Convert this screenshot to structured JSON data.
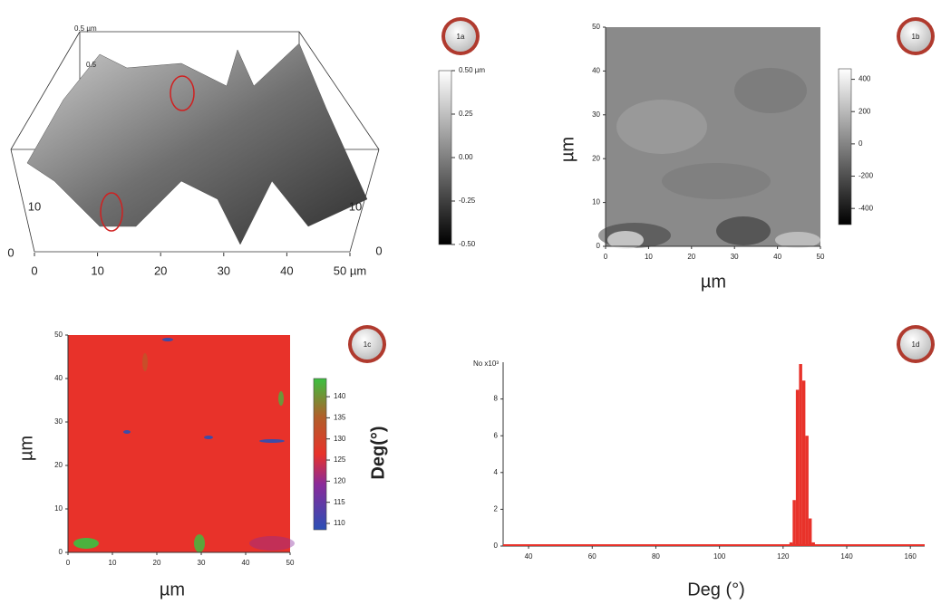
{
  "chart_data": [
    {
      "type": "surface",
      "label": "1a",
      "xlim": [
        0,
        50
      ],
      "xticks": [
        0,
        10,
        20,
        30,
        40,
        {
          "value": 50,
          "label": "50 µm"
        }
      ],
      "yticks": [
        0,
        10
      ],
      "y2ticks": [
        0,
        10
      ],
      "zticks": [
        {
          "value": 0.5,
          "label": "0.5 µm"
        },
        {
          "value": 0.5,
          "label": "0.5"
        }
      ],
      "clim": [
        -0.5,
        0.5
      ],
      "cticks": [
        {
          "value": 0.5,
          "label": "0.50 µm"
        },
        0.25,
        {
          "value": 0,
          "label": "0.00"
        },
        -0.25,
        {
          "value": -0.5,
          "label": "-0.50"
        }
      ]
    },
    {
      "type": "heatmap",
      "label": "1b",
      "xlabel": "µm",
      "ylabel": "µm",
      "color": "#8a8a8a",
      "xlim": [
        0,
        50
      ],
      "ylim": [
        0,
        50
      ],
      "xticks": [
        0,
        10,
        20,
        30,
        40,
        50
      ],
      "yticks": [
        0,
        10,
        20,
        30,
        40,
        50
      ],
      "clim": [
        -500,
        465
      ],
      "cticks": [
        400,
        200,
        0,
        -200,
        -400
      ]
    },
    {
      "type": "heatmap",
      "label": "1c",
      "xlabel": "µm",
      "ylabel": "µm",
      "clabel": "Deg(°)",
      "color": "#e8322a",
      "xlim": [
        0,
        50
      ],
      "ylim": [
        0,
        50
      ],
      "xticks": [
        0,
        10,
        20,
        30,
        40,
        50
      ],
      "yticks": [
        0,
        10,
        20,
        30,
        40,
        50
      ],
      "clim": [
        108.5,
        144.3
      ],
      "cticks": [
        140,
        135,
        130,
        125,
        120,
        115,
        110
      ]
    },
    {
      "type": "histogram",
      "label": "1d",
      "xlabel": "Deg (°)",
      "ylabel": "No x10³",
      "color": "#e8322a",
      "xlim": [
        32,
        164.5
      ],
      "ylim": [
        0,
        10
      ],
      "xticks": [
        40,
        60,
        80,
        100,
        120,
        140,
        160
      ],
      "yticks": [
        0,
        2,
        4,
        6,
        8
      ],
      "bins": [
        122,
        123,
        124,
        125,
        126,
        127,
        128,
        129,
        130
      ],
      "values": [
        0.2,
        2.5,
        8.5,
        9.9,
        9.0,
        6.0,
        1.5,
        0.2
      ]
    }
  ]
}
